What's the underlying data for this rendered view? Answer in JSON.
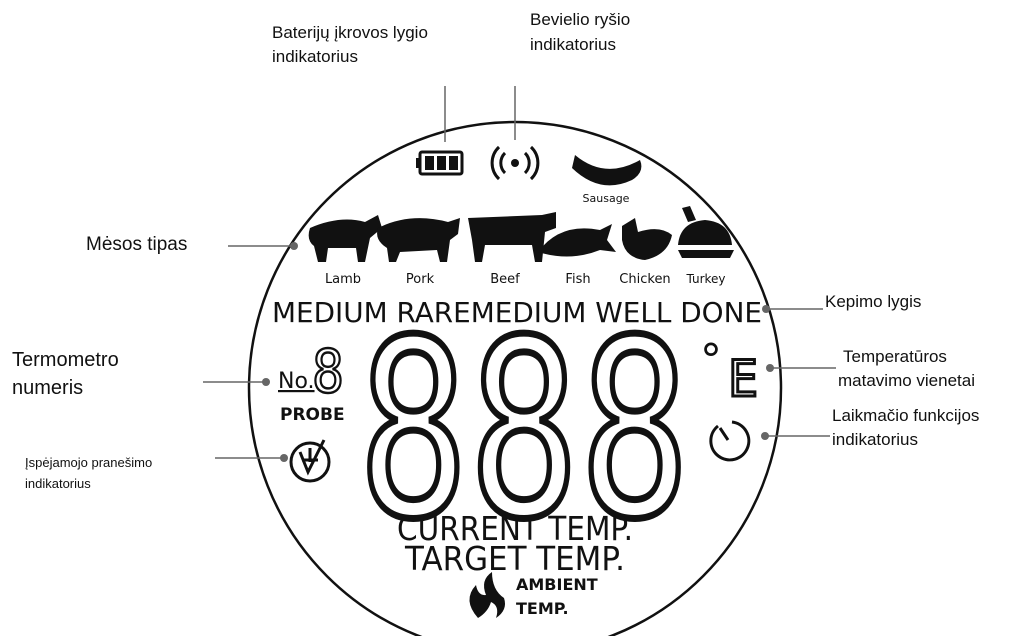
{
  "callouts": {
    "battery": [
      "Baterijų įkrovos lygio",
      "indikatorius"
    ],
    "wireless": [
      "Bevielio ryšio",
      "indikatorius"
    ],
    "meat_type": "Mėsos tipas",
    "doneness_level": "Kepimo lygis",
    "probe_number": [
      "Termometro",
      "numeris"
    ],
    "temperature_units": [
      "Temperatūros",
      "matavimo vienetai"
    ],
    "timer": [
      "Laikmačio funkcijos",
      "indikatorius"
    ],
    "alert": [
      "Įspėjamojo pranešimo",
      "indikatorius"
    ]
  },
  "display": {
    "sausage": "Sausage",
    "meats": [
      "Lamb",
      "Pork",
      "Beef",
      "Fish",
      "Chicken",
      "Turkey"
    ],
    "doneness": "MEDIUM RAREMEDIUM WELL DONE",
    "probe_no": "No.",
    "probe_digit": "8",
    "probe": "PROBE",
    "temp_digits": "888",
    "degree": "°",
    "unit": "E",
    "current": "CURRENT TEMP.",
    "target": "TARGET TEMP.",
    "ambient": "AMBIENT",
    "ambient_temp": "TEMP."
  }
}
